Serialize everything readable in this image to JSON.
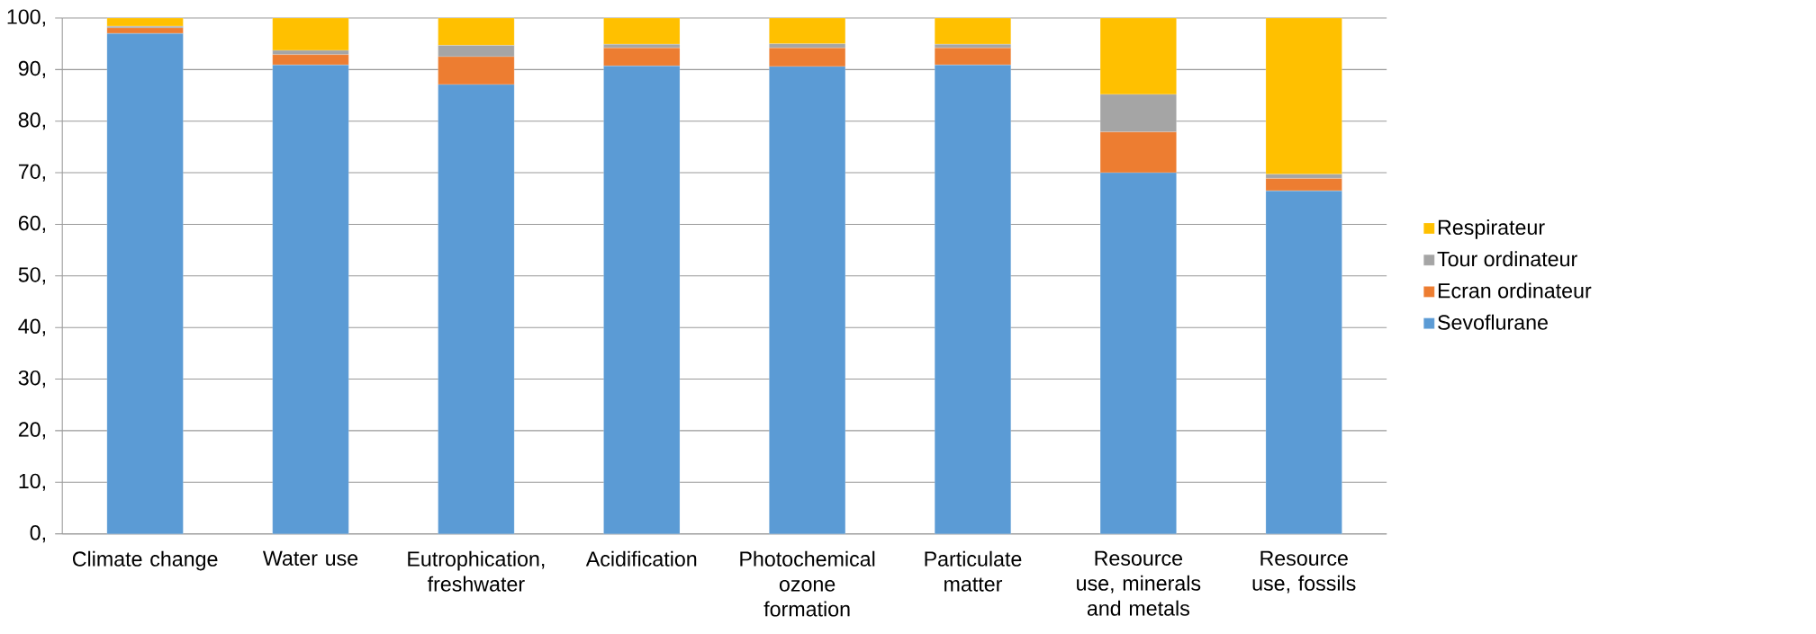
{
  "chart_data": {
    "type": "bar",
    "stacked": true,
    "categories": [
      "Climate change",
      "Water use",
      "Eutrophication, freshwater",
      "Acidification",
      "Photochemical ozone formation",
      "Particulate matter",
      "Resource use, minerals and metals",
      "Resource use, fossils"
    ],
    "series": [
      {
        "name": "Sevoflurane",
        "color": "#5b9bd5",
        "values": [
          97.0,
          90.9,
          87.1,
          90.7,
          90.6,
          90.9,
          70.0,
          66.5
        ]
      },
      {
        "name": "Ecran ordinateur",
        "color": "#ed7d31",
        "values": [
          1.1,
          2.0,
          5.4,
          3.5,
          3.6,
          3.3,
          7.9,
          2.4
        ]
      },
      {
        "name": "Tour ordinateur",
        "color": "#a5a5a5",
        "values": [
          0.3,
          0.8,
          2.2,
          0.7,
          0.8,
          0.7,
          7.3,
          0.8
        ]
      },
      {
        "name": "Respirateur",
        "color": "#ffc000",
        "values": [
          1.6,
          6.3,
          5.3,
          5.1,
          5.0,
          5.1,
          14.8,
          30.3
        ]
      }
    ],
    "ylim": [
      0,
      100
    ],
    "yticks": [
      {
        "value": 0,
        "label": "0,"
      },
      {
        "value": 10,
        "label": "10,"
      },
      {
        "value": 20,
        "label": "20,"
      },
      {
        "value": 30,
        "label": "30,"
      },
      {
        "value": 40,
        "label": "40,"
      },
      {
        "value": 50,
        "label": "50,"
      },
      {
        "value": 60,
        "label": "60,"
      },
      {
        "value": 70,
        "label": "70,"
      },
      {
        "value": 80,
        "label": "80,"
      },
      {
        "value": 90,
        "label": "90,"
      },
      {
        "value": 100,
        "label": "100,"
      }
    ],
    "grid": "y",
    "legend": "right"
  }
}
